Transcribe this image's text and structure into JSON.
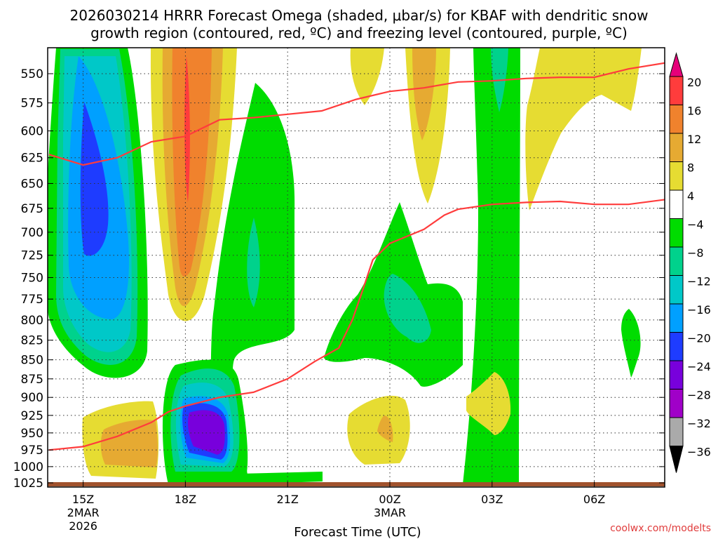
{
  "chart_data": {
    "type": "heatmap",
    "title_line1": "2026030214 HRRR Forecast Omega (shaded, μbar/s) for KBAF with dendritic snow",
    "title_line2": "growth region (contoured, red, ºC) and freezing level (contoured, purple, ºC)",
    "xlabel": "Forecast Time (UTC)",
    "ylabel": "",
    "credit": "coolwx.com/modelts",
    "x_ticks": [
      {
        "hour": 15,
        "label": "15Z",
        "sub1": "2MAR",
        "sub2": "2026"
      },
      {
        "hour": 18,
        "label": "18Z"
      },
      {
        "hour": 21,
        "label": "21Z"
      },
      {
        "hour": 24,
        "label": "00Z",
        "sub1": "3MAR"
      },
      {
        "hour": 27,
        "label": "03Z"
      },
      {
        "hour": 30,
        "label": "06Z"
      }
    ],
    "xlim_hours": [
      14,
      32.1
    ],
    "y_ticks": [
      550,
      575,
      600,
      625,
      650,
      675,
      700,
      725,
      750,
      775,
      800,
      825,
      850,
      875,
      900,
      925,
      950,
      975,
      1000,
      1025
    ],
    "ylim_hPa": [
      520,
      1030
    ],
    "colorbar": {
      "levels": [
        "20",
        "16",
        "12",
        "8",
        "4",
        "−4",
        "−8",
        "−12",
        "−16",
        "−20",
        "−24",
        "−28",
        "−32",
        "−36"
      ],
      "colors": [
        "#ff3c3c",
        "#f0822d",
        "#e6aa32",
        "#e6dc32",
        "#ffffff",
        "#00dc00",
        "#00d28c",
        "#00c8c8",
        "#00a0ff",
        "#1e3cff",
        "#7800dc",
        "#a000c8",
        "#aaaaaa"
      ],
      "top_arrow": "#e6007a",
      "bottom_arrow": "#000000"
    },
    "series": [
      {
        "name": "dendritic growth region top",
        "color": "#ff3c3c",
        "points": [
          [
            14,
            622
          ],
          [
            15,
            632
          ],
          [
            16,
            625
          ],
          [
            17,
            610
          ],
          [
            18,
            605
          ],
          [
            19,
            590
          ],
          [
            20,
            588
          ],
          [
            21,
            585
          ],
          [
            22,
            582
          ],
          [
            23,
            572
          ],
          [
            24,
            565
          ],
          [
            25,
            562
          ],
          [
            26,
            557
          ],
          [
            27,
            556
          ],
          [
            28,
            554
          ],
          [
            29,
            553
          ],
          [
            30,
            553
          ],
          [
            31,
            546
          ],
          [
            32.1,
            541
          ]
        ]
      },
      {
        "name": "dendritic growth region bottom",
        "color": "#ff3c3c",
        "points": [
          [
            14,
            975
          ],
          [
            15,
            970
          ],
          [
            16,
            955
          ],
          [
            17,
            935
          ],
          [
            17.5,
            920
          ],
          [
            18,
            912
          ],
          [
            19,
            900
          ],
          [
            20,
            893
          ],
          [
            21,
            875
          ],
          [
            21.8,
            852
          ],
          [
            22.5,
            835
          ],
          [
            22.9,
            800
          ],
          [
            23.2,
            765
          ],
          [
            23.5,
            730
          ],
          [
            24,
            712
          ],
          [
            25,
            697
          ],
          [
            25.6,
            682
          ],
          [
            26,
            676
          ],
          [
            27,
            671
          ],
          [
            28,
            669
          ],
          [
            29,
            668
          ],
          [
            30,
            671
          ],
          [
            31,
            671
          ],
          [
            32.1,
            666
          ]
        ]
      }
    ]
  }
}
